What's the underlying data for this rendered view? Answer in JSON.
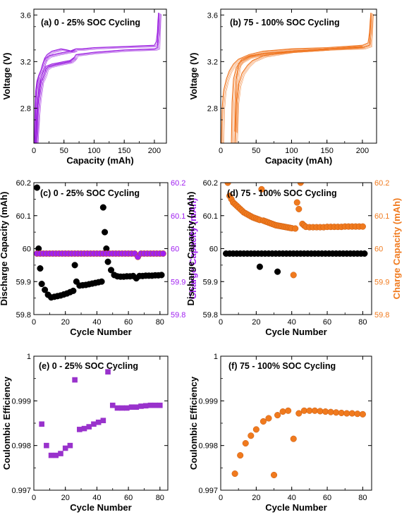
{
  "chart_data": [
    {
      "id": "a",
      "type": "line",
      "title": "(a) 0 - 25% SOC Cycling",
      "xlabel": "Capacity (mAh)",
      "ylabel": "Voltage (V)",
      "xlim": [
        0,
        220
      ],
      "ylim": [
        2.5,
        3.65
      ],
      "xticks": [
        "0",
        "50",
        "100",
        "150",
        "200"
      ],
      "yticks": [
        "2.8",
        "3.2",
        "3.6"
      ],
      "color": "#9b1fe0",
      "series": [
        {
          "x": [
            1,
            2,
            3,
            5,
            8,
            10,
            12,
            14,
            16,
            18,
            20,
            25,
            40,
            50,
            60,
            65,
            70,
            80,
            100,
            150,
            200,
            203,
            205,
            206,
            207
          ],
          "y": [
            2.5,
            2.8,
            2.95,
            3.03,
            3.08,
            3.1,
            3.13,
            3.17,
            3.2,
            3.22,
            3.23,
            3.25,
            3.27,
            3.28,
            3.29,
            3.3,
            3.31,
            3.31,
            3.32,
            3.33,
            3.34,
            3.37,
            3.45,
            3.55,
            3.62
          ]
        },
        {
          "x": [
            207,
            205,
            200,
            150,
            100,
            70,
            65,
            60,
            50,
            40,
            25,
            20,
            18,
            15,
            12,
            10,
            8,
            6,
            4,
            2.5
          ],
          "y": [
            3.62,
            3.32,
            3.31,
            3.3,
            3.28,
            3.26,
            3.22,
            3.2,
            3.19,
            3.18,
            3.16,
            3.14,
            3.1,
            3.06,
            3.03,
            2.95,
            2.88,
            2.75,
            2.6,
            2.5
          ]
        },
        {
          "x": [
            1.5,
            3,
            5,
            8,
            12,
            16,
            18,
            22,
            30,
            45,
            55,
            63,
            68
          ],
          "y": [
            2.5,
            2.85,
            3.0,
            3.08,
            3.13,
            3.2,
            3.23,
            3.26,
            3.29,
            3.31,
            3.3,
            3.29,
            3.3
          ]
        },
        {
          "x": [
            68,
            60,
            50,
            40,
            30,
            20,
            16,
            12,
            8,
            5,
            3
          ],
          "y": [
            3.24,
            3.21,
            3.2,
            3.19,
            3.18,
            3.16,
            3.12,
            3.06,
            2.95,
            2.8,
            2.5
          ]
        }
      ]
    },
    {
      "id": "b",
      "type": "line",
      "title": "(b) 75 - 100% SOC Cycling",
      "xlabel": "Capacity (mAh)",
      "ylabel": "Voltage (V)",
      "xlim": [
        0,
        220
      ],
      "ylim": [
        2.5,
        3.65
      ],
      "xticks": [
        "0",
        "50",
        "100",
        "150",
        "200"
      ],
      "yticks": [
        "2.8",
        "3.2",
        "3.6"
      ],
      "color": "#f0731c",
      "series": [
        {
          "x": [
            1,
            2,
            4,
            8,
            12,
            18,
            25,
            40,
            60,
            100,
            150,
            200,
            208,
            210,
            211,
            212
          ],
          "y": [
            2.5,
            2.8,
            2.95,
            3.05,
            3.12,
            3.18,
            3.22,
            3.26,
            3.29,
            3.31,
            3.32,
            3.34,
            3.36,
            3.45,
            3.55,
            3.62
          ]
        },
        {
          "x": [
            212,
            210,
            200,
            150,
            100,
            60,
            40,
            28,
            22,
            18,
            16,
            15
          ],
          "y": [
            3.62,
            3.34,
            3.32,
            3.31,
            3.29,
            3.27,
            3.24,
            3.2,
            3.15,
            3.05,
            2.85,
            2.5
          ]
        },
        {
          "x": [
            20,
            22,
            25,
            30,
            38,
            45,
            60,
            100,
            150,
            200
          ],
          "y": [
            2.5,
            2.85,
            3.0,
            3.1,
            3.17,
            3.21,
            3.25,
            3.29,
            3.31,
            3.33
          ]
        },
        {
          "x": [
            150,
            100,
            60,
            40,
            30,
            25,
            22,
            20
          ],
          "y": [
            3.31,
            3.29,
            3.27,
            3.25,
            3.22,
            3.18,
            3.05,
            2.6
          ]
        }
      ]
    },
    {
      "id": "c",
      "type": "scatter",
      "title": "(c) 0 - 25% SOC Cycling",
      "xlabel": "Cycle Number",
      "ylabel": "Discharge Capacity (mAh)",
      "ylabel_right": "Charge Capacity (mAh)",
      "xlim": [
        0,
        85
      ],
      "ylim": [
        59.8,
        60.2
      ],
      "ylim_right": [
        59.8,
        60.2
      ],
      "xticks": [
        "0",
        "20",
        "40",
        "60",
        "80"
      ],
      "yticks": [
        "59.8",
        "59.9",
        "60",
        "60.1",
        "60.2"
      ],
      "yticks_right": [
        "59.8",
        "59.9",
        "60",
        "60.1",
        "60.2"
      ],
      "series": [
        {
          "name": "Discharge Capacity",
          "axis": "left",
          "color": "#000000",
          "x": [
            2,
            3,
            4,
            5,
            7,
            9,
            11,
            13,
            15,
            17,
            19,
            21,
            23,
            25,
            26,
            27,
            29,
            31,
            33,
            35,
            37,
            39,
            41,
            43,
            44,
            45,
            46,
            47,
            49,
            51,
            53,
            55,
            57,
            59,
            61,
            63,
            65,
            67,
            69,
            71,
            73,
            75,
            77,
            79,
            81
          ],
          "y": [
            60.185,
            60.0,
            59.94,
            59.893,
            59.875,
            59.86,
            59.852,
            59.854,
            59.856,
            59.858,
            59.861,
            59.864,
            59.868,
            59.872,
            59.95,
            59.9,
            59.888,
            59.889,
            59.89,
            59.892,
            59.894,
            59.896,
            59.898,
            59.9,
            60.125,
            60.05,
            60.0,
            59.96,
            59.935,
            59.92,
            59.916,
            59.915,
            59.915,
            59.916,
            59.916,
            59.917,
            59.91,
            59.917,
            59.917,
            59.918,
            59.918,
            59.918,
            59.919,
            59.919,
            59.92
          ]
        },
        {
          "name": "Charge Capacity",
          "axis": "right",
          "color": "#a020f0",
          "x": [
            2,
            4,
            6,
            8,
            10,
            12,
            14,
            16,
            18,
            20,
            22,
            24,
            26,
            28,
            30,
            32,
            34,
            36,
            38,
            40,
            42,
            44,
            46,
            48,
            50,
            52,
            54,
            56,
            58,
            60,
            62,
            64,
            66,
            68,
            70,
            72,
            74,
            76,
            78,
            80,
            82
          ],
          "y": [
            59.985,
            59.985,
            59.985,
            59.985,
            59.985,
            59.985,
            59.985,
            59.985,
            59.985,
            59.985,
            59.985,
            59.985,
            59.985,
            59.985,
            59.985,
            59.985,
            59.985,
            59.985,
            59.985,
            59.985,
            59.985,
            59.985,
            59.985,
            59.985,
            59.985,
            59.985,
            59.985,
            59.985,
            59.985,
            59.985,
            59.985,
            59.985,
            59.975,
            59.985,
            59.985,
            59.985,
            59.985,
            59.985,
            59.985,
            59.985,
            59.985
          ]
        }
      ]
    },
    {
      "id": "d",
      "type": "scatter",
      "title": "(d) 75 - 100% SOC Cycling",
      "xlabel": "Cycle Number",
      "ylabel": "Discharge Capacity (mAh)",
      "ylabel_right": "Charge Capacity (mAh)",
      "xlim": [
        0,
        85
      ],
      "ylim": [
        59.8,
        60.2
      ],
      "ylim_right": [
        59.8,
        60.2
      ],
      "xticks": [
        "0",
        "20",
        "40",
        "60",
        "80"
      ],
      "yticks": [
        "59.8",
        "59.9",
        "60",
        "60.1",
        "60.2"
      ],
      "yticks_right": [
        "59.8",
        "59.9",
        "60",
        "60.1",
        "60.2"
      ],
      "series": [
        {
          "name": "Discharge Capacity",
          "axis": "left",
          "color": "#000000",
          "x": [
            3,
            5,
            7,
            9,
            11,
            13,
            15,
            17,
            19,
            21,
            22,
            23,
            25,
            27,
            29,
            31,
            32,
            33,
            35,
            37,
            39,
            41,
            43,
            45,
            47,
            49,
            51,
            53,
            55,
            57,
            59,
            61,
            63,
            65,
            67,
            69,
            71,
            73,
            75,
            77,
            79,
            81
          ],
          "y": [
            59.985,
            59.985,
            59.985,
            59.985,
            59.985,
            59.985,
            59.985,
            59.985,
            59.985,
            59.985,
            59.945,
            59.985,
            59.985,
            59.985,
            59.985,
            59.985,
            59.93,
            59.985,
            59.985,
            59.985,
            59.985,
            59.985,
            59.985,
            59.985,
            59.985,
            59.985,
            59.985,
            59.985,
            59.985,
            59.985,
            59.985,
            59.985,
            59.985,
            59.985,
            59.985,
            59.985,
            59.985,
            59.985,
            59.985,
            59.985,
            59.985,
            59.985
          ]
        },
        {
          "name": "Charge Capacity",
          "axis": "right",
          "color": "#f07a1e",
          "x": [
            4,
            5,
            6,
            7,
            8,
            9,
            10,
            11,
            12,
            13,
            14,
            15,
            16,
            17,
            18,
            19,
            20,
            21,
            22,
            23,
            24,
            25,
            26,
            27,
            28,
            29,
            30,
            31,
            32,
            33,
            34,
            35,
            36,
            37,
            38,
            39,
            40,
            41,
            42,
            43,
            44,
            45,
            46,
            47,
            48,
            50,
            52,
            54,
            56,
            58,
            60,
            62,
            64,
            66,
            68,
            70,
            72,
            74,
            76,
            78,
            80
          ],
          "y": [
            60.2,
            60.16,
            60.15,
            60.14,
            60.135,
            60.13,
            60.125,
            60.12,
            60.115,
            60.11,
            60.107,
            60.104,
            60.101,
            60.098,
            60.095,
            60.093,
            60.091,
            60.089,
            60.087,
            60.18,
            60.085,
            60.083,
            60.081,
            60.079,
            60.077,
            60.075,
            60.073,
            60.071,
            60.07,
            60.069,
            60.068,
            60.067,
            60.066,
            60.065,
            60.064,
            60.063,
            60.062,
            59.92,
            60.061,
            60.14,
            60.12,
            60.2,
            60.075,
            60.07,
            60.066,
            60.065,
            60.065,
            60.065,
            60.065,
            60.065,
            60.066,
            60.066,
            60.066,
            60.066,
            60.066,
            60.067,
            60.067,
            60.067,
            60.067,
            60.067,
            60.067
          ]
        }
      ]
    },
    {
      "id": "e",
      "type": "scatter",
      "title": "(e) 0 - 25% SOC Cycling",
      "xlabel": "Cycle Number",
      "ylabel": "Coulombic Efficiency",
      "xlim": [
        0,
        85
      ],
      "ylim": [
        0.997,
        1.0
      ],
      "xticks": [
        "0",
        "20",
        "40",
        "60",
        "80"
      ],
      "yticks": [
        "0.997",
        "0.998",
        "0.999",
        "1"
      ],
      "marker": "square",
      "color": "#9932cc",
      "series": [
        {
          "x": [
            5,
            8,
            11,
            14,
            17,
            20,
            23,
            26,
            29,
            32,
            35,
            38,
            41,
            44,
            47,
            50,
            53,
            56,
            59,
            62,
            65,
            68,
            71,
            74,
            77,
            80
          ],
          "y": [
            0.99848,
            0.998,
            0.99778,
            0.99778,
            0.99782,
            0.99794,
            0.998,
            0.99947,
            0.99836,
            0.99838,
            0.99842,
            0.99848,
            0.99852,
            0.99856,
            0.99965,
            0.9989,
            0.99884,
            0.99884,
            0.99884,
            0.99886,
            0.99886,
            0.99888,
            0.99889,
            0.9989,
            0.9989,
            0.9989
          ]
        }
      ]
    },
    {
      "id": "f",
      "type": "scatter",
      "title": "(f) 75 - 100% SOC Cycling",
      "xlabel": "Cycle Number",
      "ylabel": "Coulombic Efficiency",
      "xlim": [
        0,
        85
      ],
      "ylim": [
        0.997,
        1.0
      ],
      "xticks": [
        "0",
        "20",
        "40",
        "60",
        "80"
      ],
      "yticks": [
        "0.997",
        "0.998",
        "0.999",
        "1"
      ],
      "marker": "circle",
      "color": "#f07a1e",
      "series": [
        {
          "x": [
            8,
            11,
            14,
            17,
            20,
            24,
            27,
            30,
            32,
            35,
            38,
            41,
            44,
            47,
            50,
            53,
            56,
            59,
            62,
            65,
            68,
            71,
            74,
            77,
            80
          ],
          "y": [
            0.99737,
            0.99778,
            0.99805,
            0.99822,
            0.99836,
            0.99854,
            0.99861,
            0.99734,
            0.99868,
            0.99876,
            0.99878,
            0.99815,
            0.99872,
            0.99878,
            0.99878,
            0.99878,
            0.99877,
            0.99876,
            0.99875,
            0.99874,
            0.99873,
            0.99872,
            0.99872,
            0.99871,
            0.9987
          ]
        }
      ]
    }
  ]
}
